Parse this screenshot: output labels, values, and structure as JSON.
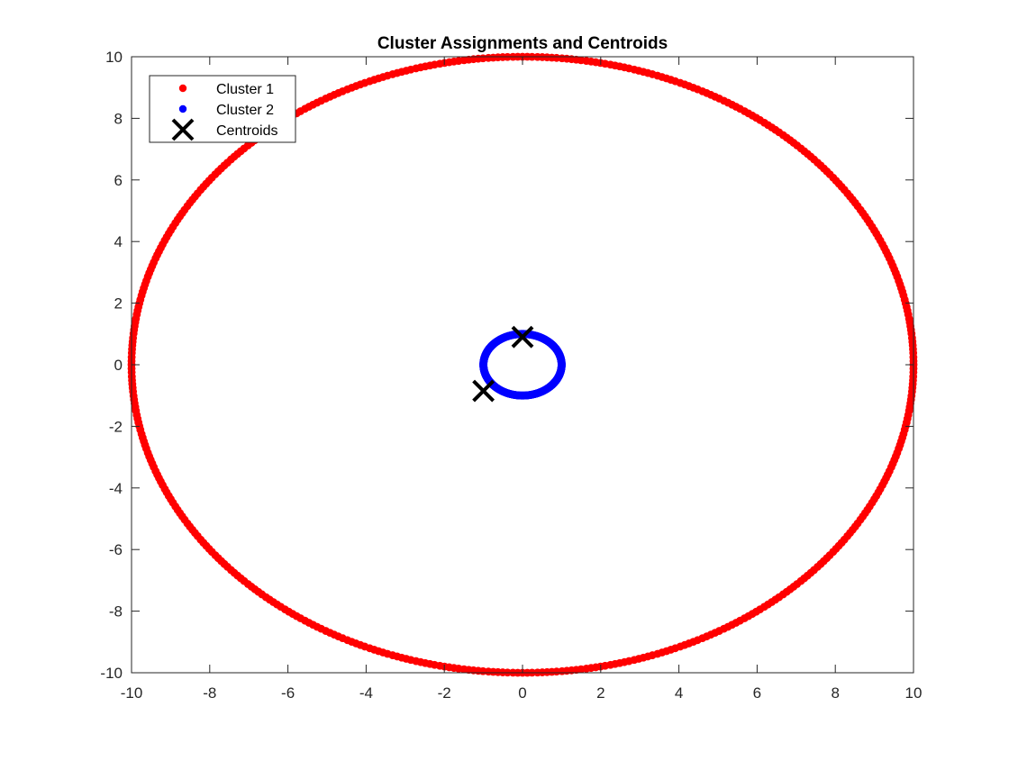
{
  "chart_data": {
    "type": "scatter",
    "title": "Cluster Assignments and Centroids",
    "xlabel": "",
    "ylabel": "",
    "xlim": [
      -10,
      10
    ],
    "ylim": [
      -10,
      10
    ],
    "xticks": [
      -10,
      -8,
      -6,
      -4,
      -2,
      0,
      2,
      4,
      6,
      8,
      10
    ],
    "yticks": [
      -10,
      -8,
      -6,
      -4,
      -2,
      0,
      2,
      4,
      6,
      8,
      10
    ],
    "grid": false,
    "box": true,
    "legend_position": "top-left",
    "series": [
      {
        "name": "Cluster 1",
        "marker": "filled-dot",
        "color": "#ff0000",
        "shape": "circle",
        "center": [
          0,
          0
        ],
        "radius": 10,
        "point_count": 500,
        "angles_deg": [
          0.0,
          0.7,
          1.4,
          2.2,
          2.9,
          3.6,
          4.3,
          5.0,
          5.8,
          6.5,
          7.2,
          7.9,
          8.6,
          9.4,
          10.1,
          10.8,
          11.5,
          12.2,
          13.0,
          13.7,
          14.4,
          15.1,
          15.8,
          16.6,
          17.3,
          18.0,
          18.7,
          19.4,
          20.2,
          20.9,
          21.6,
          22.3,
          23.0,
          23.8,
          24.5,
          25.2,
          25.9,
          26.6,
          27.4,
          28.1,
          28.8,
          29.5,
          30.2,
          31.0,
          31.7,
          32.4,
          33.1,
          33.8,
          34.6,
          35.3,
          36.0,
          36.7,
          37.4,
          38.2,
          38.9,
          39.6,
          40.3,
          41.0,
          41.8,
          42.5,
          43.2,
          43.9,
          44.6,
          45.4,
          46.1,
          46.8,
          47.5,
          48.2,
          49.0,
          49.7,
          50.4,
          51.1,
          51.8,
          52.6,
          53.3,
          54.0,
          54.7,
          55.4,
          56.2,
          56.9,
          57.6,
          58.3,
          59.0,
          59.8,
          60.5,
          61.2,
          61.9,
          62.6,
          63.4,
          64.1,
          64.8,
          65.5,
          66.2,
          67.0,
          67.7,
          68.4,
          69.1,
          69.8,
          70.6,
          71.3,
          72.0,
          72.7,
          73.4,
          74.2,
          74.9,
          75.6,
          76.3,
          77.0,
          77.8,
          78.5,
          79.2,
          79.9,
          80.6,
          81.4,
          82.1,
          82.8,
          83.5,
          84.2,
          85.0,
          85.7,
          86.4,
          87.1,
          87.8,
          88.6,
          89.3,
          90.0,
          90.7,
          91.4,
          92.2,
          92.9,
          93.6,
          94.3,
          95.0,
          95.8,
          96.5,
          97.2,
          97.9,
          98.6,
          99.4,
          100.1,
          100.8,
          101.5,
          102.2,
          103.0,
          103.7,
          104.4,
          105.1,
          105.8,
          106.6,
          107.3,
          108.0,
          108.7,
          109.4,
          110.2,
          110.9,
          111.6,
          112.3,
          113.0,
          113.8,
          114.5,
          115.2,
          115.9,
          116.6,
          117.4,
          118.1,
          118.8,
          119.5,
          120.2,
          121.0,
          121.7,
          122.4,
          123.1,
          123.8,
          124.6,
          125.3,
          126.0,
          126.7,
          127.4,
          128.2,
          128.9,
          129.6,
          130.3,
          131.0,
          131.8,
          132.5,
          133.2,
          133.9,
          134.6,
          135.4,
          136.1,
          136.8,
          137.5,
          138.2,
          139.0,
          139.7,
          140.4,
          141.1,
          141.8,
          142.6,
          143.3,
          144.0,
          144.7,
          145.4,
          146.2,
          146.9,
          147.6,
          148.3,
          149.0,
          149.8,
          150.5,
          151.2,
          151.9,
          152.6,
          153.4,
          154.1,
          154.8,
          155.5,
          156.2,
          157.0,
          157.7,
          158.4,
          159.1,
          159.8,
          160.6,
          161.3,
          162.0,
          162.7,
          163.4,
          164.2,
          164.9,
          165.6,
          166.3,
          167.0,
          167.8,
          168.5,
          169.2,
          169.9,
          170.6,
          171.4,
          172.1,
          172.8,
          173.5,
          174.2,
          175.0,
          175.7,
          176.4,
          177.1,
          177.8,
          178.6,
          179.3,
          180.0,
          180.7,
          181.4,
          182.2,
          182.9,
          183.6,
          184.3,
          185.0,
          185.8,
          186.5,
          187.2,
          187.9,
          188.6,
          189.4,
          190.1,
          190.8,
          191.5,
          192.2,
          193.0,
          193.7,
          194.4,
          195.1,
          195.8,
          196.6,
          197.3,
          198.0,
          198.7,
          199.4,
          200.2,
          200.9,
          201.6,
          202.3,
          203.0,
          203.8,
          204.5,
          205.2,
          205.9,
          206.6,
          207.4,
          208.1,
          208.8,
          209.5,
          210.2,
          211.0,
          211.7,
          212.4,
          213.1,
          213.8,
          214.6,
          215.3,
          216.0,
          216.7,
          217.4,
          218.2,
          218.9,
          219.6,
          220.3,
          221.0,
          221.8,
          222.5,
          223.2,
          223.9,
          224.6,
          225.4,
          226.1,
          226.8,
          227.5,
          228.2,
          229.0,
          229.7,
          230.4,
          231.1,
          231.8,
          232.6,
          233.3,
          234.0,
          234.7,
          235.4,
          236.2,
          236.9,
          237.6,
          238.3,
          239.0,
          239.8,
          240.5,
          241.2,
          241.9,
          242.6,
          243.4,
          244.1,
          244.8,
          245.5,
          246.2,
          247.0,
          247.7,
          248.4,
          249.1,
          249.8,
          250.6,
          251.3,
          252.0,
          252.7,
          253.4,
          254.2,
          254.9,
          255.6,
          256.3,
          257.0,
          257.8,
          258.5,
          259.2,
          259.9,
          260.6,
          261.4,
          262.1,
          262.8,
          263.5,
          264.2,
          265.0,
          265.7,
          266.4,
          267.1,
          267.8,
          268.6,
          269.3,
          270.0,
          270.7,
          271.4,
          272.2,
          272.9,
          273.6,
          274.3,
          275.0,
          275.8,
          276.5,
          277.2,
          277.9,
          278.6,
          279.4,
          280.1,
          280.8,
          281.5,
          282.2,
          283.0,
          283.7,
          284.4,
          285.1,
          285.8,
          286.6,
          287.3,
          288.0,
          288.7,
          289.4,
          290.2,
          290.9,
          291.6,
          292.3,
          293.0,
          293.8,
          294.5,
          295.2,
          295.9,
          296.6,
          297.4,
          298.1,
          298.8,
          299.5,
          300.2,
          301.0,
          301.7,
          302.4,
          303.1,
          303.8,
          304.6,
          305.3,
          306.0,
          306.7,
          307.4,
          308.2,
          308.9,
          309.6,
          310.3,
          311.0,
          311.8,
          312.5,
          313.2,
          313.9,
          314.6,
          315.4,
          316.1,
          316.8,
          317.5,
          318.2,
          319.0,
          319.7,
          320.4,
          321.1,
          321.8,
          322.6,
          323.3,
          324.0,
          324.7,
          325.4,
          326.2,
          326.9,
          327.6,
          328.3,
          329.0,
          329.8,
          330.5,
          331.2,
          331.9,
          332.6,
          333.4,
          334.1,
          334.8,
          335.5,
          336.2,
          337.0,
          337.7,
          338.4,
          339.1,
          339.8,
          340.6,
          341.3,
          342.0,
          342.7,
          343.4,
          344.2,
          344.9,
          345.6,
          346.3,
          347.0,
          347.8,
          348.5,
          349.2,
          349.9,
          350.6,
          351.4,
          352.1,
          352.8,
          353.5,
          354.2,
          355.0,
          355.7,
          356.4,
          357.1,
          357.8,
          358.6,
          359.3
        ]
      },
      {
        "name": "Cluster 2",
        "marker": "filled-dot",
        "color": "#0000ff",
        "shape": "circle",
        "center": [
          0,
          0
        ],
        "radius": 1,
        "point_count": 500
      },
      {
        "name": "Centroids",
        "marker": "x",
        "color": "#000000",
        "points": [
          {
            "x": 0.0,
            "y": 0.9
          },
          {
            "x": -1.0,
            "y": -0.85
          }
        ]
      }
    ]
  },
  "legend": {
    "entries": [
      "Cluster 1",
      "Cluster 2",
      "Centroids"
    ]
  }
}
